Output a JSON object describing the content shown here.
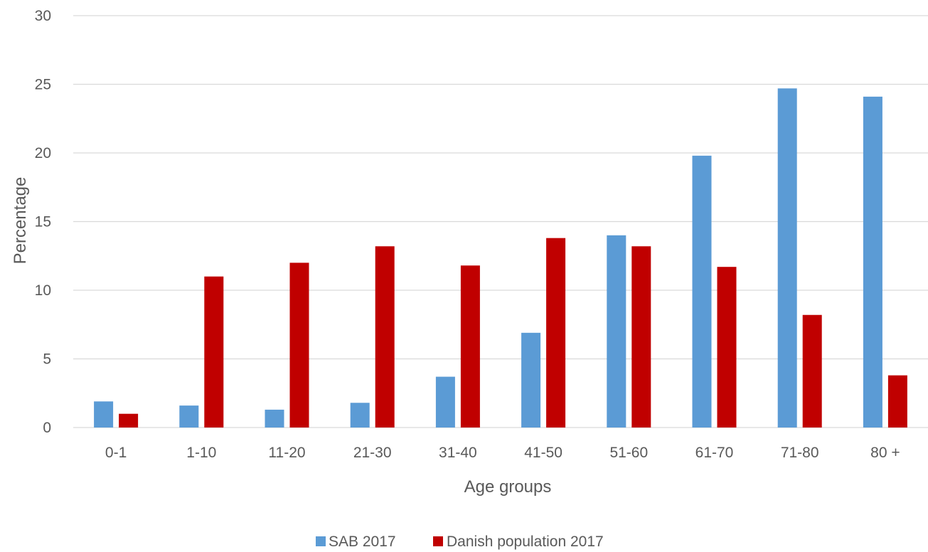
{
  "chart_data": {
    "type": "bar",
    "title": "",
    "xlabel": "Age groups",
    "ylabel": "Percentage",
    "ylim": [
      0,
      30
    ],
    "yticks": [
      "0",
      "5",
      "10",
      "15",
      "20",
      "25",
      "30"
    ],
    "grid": true,
    "legend_position": "bottom",
    "categories": [
      "0-1",
      "1-10",
      "11-20",
      "21-30",
      "31-40",
      "41-50",
      "51-60",
      "61-70",
      "71-80",
      "80 +"
    ],
    "series": [
      {
        "name": "SAB 2017",
        "color": "#5b9bd5",
        "values": [
          1.9,
          1.6,
          1.3,
          1.8,
          3.7,
          6.9,
          14.0,
          19.8,
          24.7,
          24.1
        ]
      },
      {
        "name": "Danish population 2017",
        "color": "#c00000",
        "values": [
          1.0,
          11.0,
          12.0,
          13.2,
          11.8,
          13.8,
          13.2,
          11.7,
          8.2,
          3.8
        ]
      }
    ]
  }
}
